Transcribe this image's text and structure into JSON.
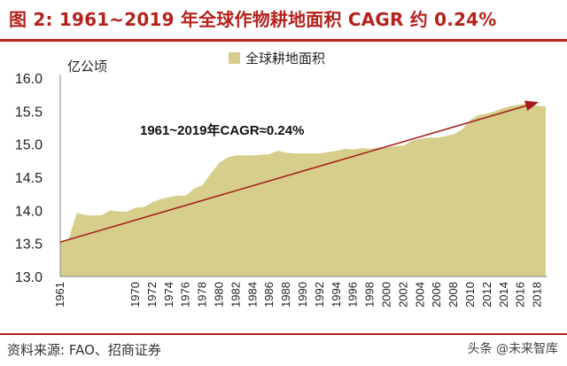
{
  "header": {
    "title": "图 2:  1961~2019 年全球作物耕地面积 CAGR 约 0.24%"
  },
  "footer": {
    "source": "资料来源:  FAO、招商证券",
    "watermark": "头条 @未来智库"
  },
  "colors": {
    "accent": "#b5221c",
    "area": "#d6ce8a",
    "trend": "#a31b1b"
  },
  "chart_data": {
    "type": "area",
    "title": "1961~2019 年全球作物耕地面积 CAGR 约 0.24%",
    "ylabel": "亿公顷",
    "xlabel": "",
    "ylim": [
      13.0,
      16.0
    ],
    "yticks": [
      "13.0",
      "13.5",
      "14.0",
      "14.5",
      "15.0",
      "15.5",
      "16.0"
    ],
    "grid": false,
    "legend": "全球耕地面积",
    "legend_position": "top",
    "x_tick_labels": [
      "1961",
      "1970",
      "1972",
      "1974",
      "1976",
      "1978",
      "1980",
      "1982",
      "1984",
      "1986",
      "1988",
      "1990",
      "1992",
      "1994",
      "1996",
      "1998",
      "2000",
      "2002",
      "2004",
      "2006",
      "2008",
      "2010",
      "2012",
      "2014",
      "2016",
      "2018"
    ],
    "x": [
      1961,
      1962,
      1963,
      1964,
      1965,
      1966,
      1967,
      1968,
      1969,
      1970,
      1971,
      1972,
      1973,
      1974,
      1975,
      1976,
      1977,
      1978,
      1979,
      1980,
      1981,
      1982,
      1983,
      1984,
      1985,
      1986,
      1987,
      1988,
      1989,
      1990,
      1991,
      1992,
      1993,
      1994,
      1995,
      1996,
      1997,
      1998,
      1999,
      2000,
      2001,
      2002,
      2003,
      2004,
      2005,
      2006,
      2007,
      2008,
      2009,
      2010,
      2011,
      2012,
      2013,
      2014,
      2015,
      2016,
      2017,
      2018,
      2019
    ],
    "values": [
      13.53,
      13.57,
      13.96,
      13.93,
      13.92,
      13.93,
      14.0,
      13.98,
      13.98,
      14.04,
      14.05,
      14.12,
      14.17,
      14.2,
      14.22,
      14.22,
      14.33,
      14.38,
      14.56,
      14.72,
      14.8,
      14.83,
      14.83,
      14.83,
      14.84,
      14.85,
      14.9,
      14.87,
      14.86,
      14.86,
      14.86,
      14.86,
      14.88,
      14.9,
      14.93,
      14.92,
      14.94,
      14.93,
      14.95,
      14.95,
      14.97,
      14.98,
      15.05,
      15.08,
      15.1,
      15.1,
      15.12,
      15.15,
      15.22,
      15.37,
      15.44,
      15.46,
      15.5,
      15.55,
      15.58,
      15.6,
      15.62,
      15.58,
      15.57
    ],
    "trend": {
      "label": "1961~2019年CAGR≈0.24%",
      "start": [
        1961,
        13.52
      ],
      "end": [
        2018,
        15.63
      ]
    }
  }
}
